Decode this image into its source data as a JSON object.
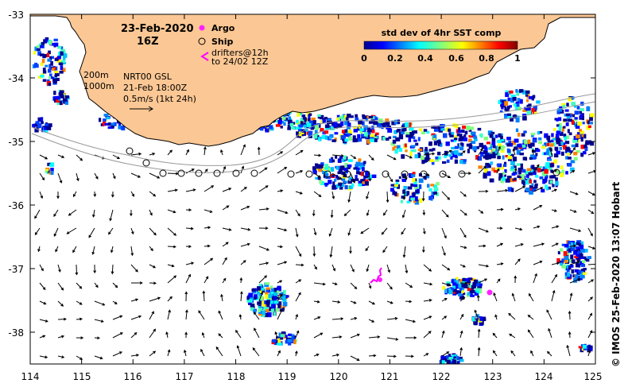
{
  "map": {
    "lon_range": [
      114,
      125
    ],
    "lat_range": [
      -38.5,
      -33
    ],
    "x_ticks": [
      "114",
      "115",
      "116",
      "117",
      "118",
      "119",
      "120",
      "121",
      "122",
      "123",
      "124",
      "125"
    ],
    "y_ticks": [
      "-33",
      "-34",
      "-35",
      "-36",
      "-37",
      "-38"
    ],
    "land_color": "#fbc794",
    "coast_color": "#000000"
  },
  "header": {
    "date": "23-Feb-2020",
    "time": "16Z"
  },
  "legend": {
    "argo_label": "Argo",
    "argo_color": "#ff22ff",
    "ship_label": "Ship",
    "drifter_label_1": "drifters@12h",
    "drifter_label_2": "to 24/02 12Z",
    "drifter_color": "#ff00ff"
  },
  "isobaths": {
    "label_200": "200m",
    "label_1000": "1000m"
  },
  "product": {
    "line1": "NRT00 GSL",
    "line2": "21-Feb 18:00Z",
    "line3": "0.5m/s (1kt 24h)"
  },
  "colorbar": {
    "title": "std dev of 4hr SST comp",
    "ticks": [
      "0",
      "0.2",
      "0.4",
      "0.6",
      "0.8",
      "1"
    ]
  },
  "credit": "© IMOS 25-Feb-2020 13:07 Hobart"
}
